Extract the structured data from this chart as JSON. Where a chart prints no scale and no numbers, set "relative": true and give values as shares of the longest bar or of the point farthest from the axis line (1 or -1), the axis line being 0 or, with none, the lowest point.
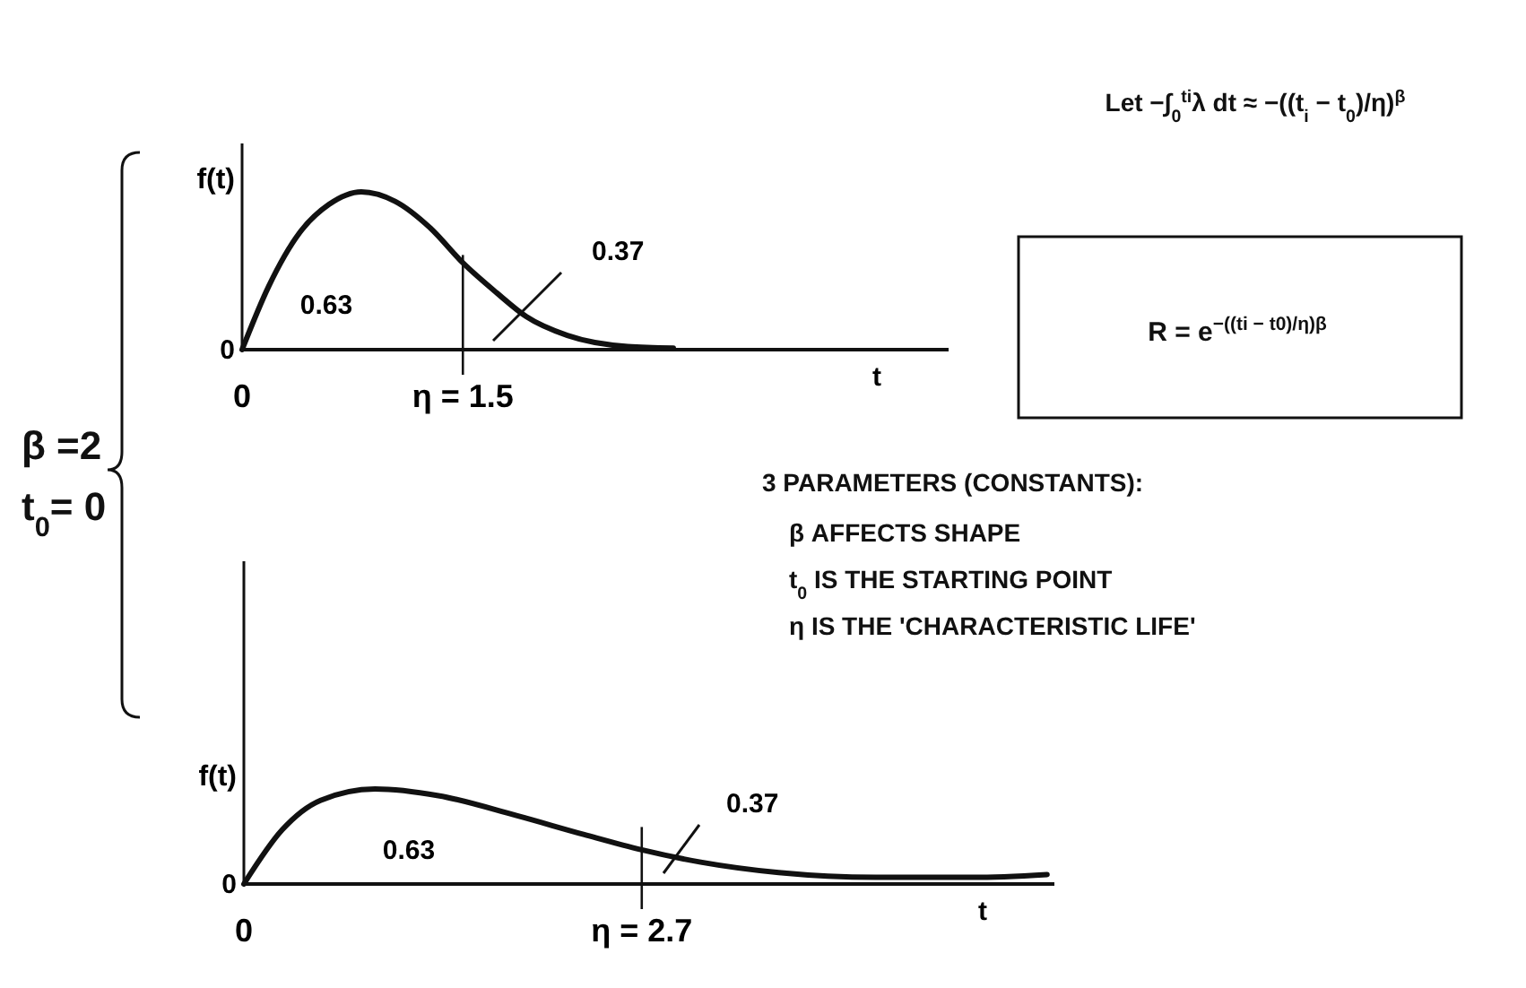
{
  "chart_data": [
    {
      "type": "line",
      "relative": true,
      "xlabel": "t",
      "ylabel": "f(t)",
      "xlim": [
        0,
        4.8
      ],
      "xticks": [
        0,
        {
          "value": 1.5,
          "label": "η = 1.5"
        }
      ],
      "color": "#111111",
      "x": [
        0,
        0.18,
        0.39,
        0.59,
        0.81,
        1.04,
        1.28,
        1.5,
        1.73,
        1.93,
        2.21,
        2.62,
        2.93
      ],
      "values": [
        0,
        0.4,
        0.74,
        0.92,
        1,
        0.94,
        0.77,
        0.55,
        0.36,
        0.21,
        0.09,
        0.02,
        0.01
      ],
      "annotations": [
        {
          "text": "0",
          "x": 0,
          "y": 0
        },
        "0.63",
        "0.37"
      ]
    },
    {
      "type": "line",
      "relative": true,
      "xlabel": "t",
      "ylabel": "f(t)",
      "xlim": [
        0,
        5.5
      ],
      "xticks": [
        0,
        {
          "value": 2.7,
          "label": "η = 2.7"
        }
      ],
      "color": "#111111",
      "x": [
        0,
        0.26,
        0.52,
        0.89,
        1.32,
        1.85,
        2.31,
        2.7,
        3.1,
        3.63,
        4.29,
        4.95,
        5.45
      ],
      "values": [
        0,
        0.57,
        0.88,
        1,
        0.93,
        0.72,
        0.52,
        0.36,
        0.23,
        0.12,
        0.07,
        0.07,
        0.1
      ],
      "annotations": [
        {
          "text": "0",
          "x": 0,
          "y": 0
        },
        "0.63",
        "0.37"
      ]
    },
    {
      "type": "other",
      "annotations": [
        "Let −∫$_{0}$$^{ti}$λ dt ≈ −((t$_{i}$ − t$_{0}$)/η)$^{β}$",
        "R = e$^{−((ti − t0)/η)β}$",
        "3 PARAMETERS (CONSTANTS):",
        "β   AFFECTS SHAPE",
        "t$_{0}$   IS THE STARTING POINT",
        "η   IS THE 'CHARACTERISTIC LIFE'",
        "β =2",
        "t$_{0}$= 0"
      ]
    }
  ]
}
